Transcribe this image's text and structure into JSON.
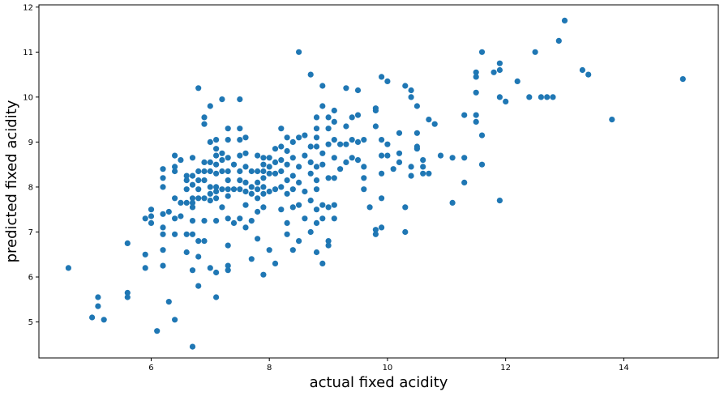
{
  "chart_data": {
    "type": "scatter",
    "title": "",
    "xlabel": "actual fixed acidity",
    "ylabel": "predicted fixed acidity",
    "xlim": [
      4.1,
      15.6
    ],
    "ylim": [
      4.2,
      12.05
    ],
    "xticks": [
      6,
      8,
      10,
      12,
      14
    ],
    "yticks": [
      5,
      6,
      7,
      8,
      9,
      10,
      11,
      12
    ],
    "grid": false,
    "colors": {
      "marker": "#1f77b4",
      "axes": "#000000",
      "background": "#ffffff"
    },
    "series": [
      {
        "points": [
          [
            4.6,
            6.2
          ],
          [
            5.0,
            5.1
          ],
          [
            5.1,
            5.55
          ],
          [
            5.1,
            5.35
          ],
          [
            5.2,
            5.05
          ],
          [
            5.6,
            6.75
          ],
          [
            5.6,
            5.65
          ],
          [
            5.6,
            5.55
          ],
          [
            5.9,
            7.3
          ],
          [
            5.9,
            6.5
          ],
          [
            5.9,
            6.2
          ],
          [
            6.0,
            7.5
          ],
          [
            6.0,
            7.35
          ],
          [
            6.0,
            7.2
          ],
          [
            6.1,
            4.8
          ],
          [
            6.2,
            8.4
          ],
          [
            6.2,
            8.2
          ],
          [
            6.2,
            8.0
          ],
          [
            6.2,
            7.4
          ],
          [
            6.2,
            7.1
          ],
          [
            6.2,
            6.95
          ],
          [
            6.2,
            6.6
          ],
          [
            6.2,
            6.25
          ],
          [
            6.3,
            7.45
          ],
          [
            6.3,
            5.45
          ],
          [
            6.4,
            8.7
          ],
          [
            6.4,
            8.45
          ],
          [
            6.4,
            8.35
          ],
          [
            6.4,
            7.75
          ],
          [
            6.4,
            7.3
          ],
          [
            6.4,
            6.95
          ],
          [
            6.4,
            5.05
          ],
          [
            6.5,
            8.6
          ],
          [
            6.5,
            7.65
          ],
          [
            6.5,
            7.35
          ],
          [
            6.6,
            8.25
          ],
          [
            6.6,
            8.15
          ],
          [
            6.6,
            7.95
          ],
          [
            6.6,
            7.65
          ],
          [
            6.6,
            6.95
          ],
          [
            6.6,
            6.55
          ],
          [
            6.7,
            8.65
          ],
          [
            6.7,
            8.25
          ],
          [
            6.7,
            8.05
          ],
          [
            6.7,
            7.75
          ],
          [
            6.7,
            7.65
          ],
          [
            6.7,
            7.55
          ],
          [
            6.7,
            7.25
          ],
          [
            6.7,
            6.95
          ],
          [
            6.7,
            6.15
          ],
          [
            6.7,
            4.45
          ],
          [
            6.8,
            10.2
          ],
          [
            6.8,
            8.35
          ],
          [
            6.8,
            8.15
          ],
          [
            6.8,
            7.95
          ],
          [
            6.8,
            7.75
          ],
          [
            6.8,
            6.8
          ],
          [
            6.8,
            6.45
          ],
          [
            6.8,
            5.8
          ],
          [
            6.9,
            9.55
          ],
          [
            6.9,
            9.4
          ],
          [
            6.9,
            8.55
          ],
          [
            6.9,
            8.35
          ],
          [
            6.9,
            8.15
          ],
          [
            6.9,
            7.75
          ],
          [
            6.9,
            7.25
          ],
          [
            6.9,
            6.8
          ],
          [
            7.0,
            9.8
          ],
          [
            7.0,
            9.0
          ],
          [
            7.0,
            8.55
          ],
          [
            7.0,
            8.35
          ],
          [
            7.0,
            8.0
          ],
          [
            7.0,
            7.85
          ],
          [
            7.0,
            7.7
          ],
          [
            7.0,
            6.2
          ],
          [
            7.1,
            9.05
          ],
          [
            7.1,
            8.85
          ],
          [
            7.1,
            8.7
          ],
          [
            7.1,
            8.5
          ],
          [
            7.1,
            8.3
          ],
          [
            7.1,
            8.0
          ],
          [
            7.1,
            7.9
          ],
          [
            7.1,
            7.75
          ],
          [
            7.1,
            7.25
          ],
          [
            7.1,
            6.1
          ],
          [
            7.1,
            5.55
          ],
          [
            7.2,
            9.95
          ],
          [
            7.2,
            8.75
          ],
          [
            7.2,
            8.6
          ],
          [
            7.2,
            8.35
          ],
          [
            7.2,
            7.95
          ],
          [
            7.2,
            7.55
          ],
          [
            7.3,
            9.3
          ],
          [
            7.3,
            9.05
          ],
          [
            7.3,
            8.65
          ],
          [
            7.3,
            8.35
          ],
          [
            7.3,
            8.15
          ],
          [
            7.3,
            7.95
          ],
          [
            7.3,
            7.8
          ],
          [
            7.3,
            7.3
          ],
          [
            7.3,
            6.7
          ],
          [
            7.3,
            6.25
          ],
          [
            7.3,
            6.15
          ],
          [
            7.4,
            8.5
          ],
          [
            7.4,
            7.95
          ],
          [
            7.4,
            7.2
          ],
          [
            7.5,
            9.95
          ],
          [
            7.5,
            9.3
          ],
          [
            7.5,
            9.05
          ],
          [
            7.5,
            8.7
          ],
          [
            7.5,
            8.35
          ],
          [
            7.5,
            8.15
          ],
          [
            7.5,
            7.95
          ],
          [
            7.5,
            7.3
          ],
          [
            7.6,
            9.1
          ],
          [
            7.6,
            8.75
          ],
          [
            7.6,
            8.45
          ],
          [
            7.6,
            8.1
          ],
          [
            7.6,
            7.9
          ],
          [
            7.6,
            7.6
          ],
          [
            7.6,
            7.1
          ],
          [
            7.7,
            8.35
          ],
          [
            7.7,
            8.0
          ],
          [
            7.7,
            7.85
          ],
          [
            7.7,
            7.25
          ],
          [
            7.7,
            6.4
          ],
          [
            7.8,
            8.7
          ],
          [
            7.8,
            8.35
          ],
          [
            7.8,
            8.1
          ],
          [
            7.8,
            7.95
          ],
          [
            7.8,
            7.75
          ],
          [
            7.8,
            7.45
          ],
          [
            7.8,
            6.85
          ],
          [
            7.9,
            8.65
          ],
          [
            7.9,
            8.5
          ],
          [
            7.9,
            8.35
          ],
          [
            7.9,
            8.2
          ],
          [
            7.9,
            8.0
          ],
          [
            7.9,
            7.85
          ],
          [
            7.9,
            7.55
          ],
          [
            7.9,
            6.05
          ],
          [
            8.0,
            8.65
          ],
          [
            8.0,
            8.45
          ],
          [
            8.0,
            8.3
          ],
          [
            8.0,
            7.9
          ],
          [
            8.0,
            6.6
          ],
          [
            8.1,
            8.85
          ],
          [
            8.1,
            8.55
          ],
          [
            8.1,
            8.3
          ],
          [
            8.1,
            7.95
          ],
          [
            8.1,
            6.3
          ],
          [
            8.2,
            9.3
          ],
          [
            8.2,
            8.9
          ],
          [
            8.2,
            8.6
          ],
          [
            8.2,
            8.35
          ],
          [
            8.2,
            8.0
          ],
          [
            8.2,
            7.5
          ],
          [
            8.3,
            9.1
          ],
          [
            8.3,
            8.8
          ],
          [
            8.3,
            8.5
          ],
          [
            8.3,
            8.15
          ],
          [
            8.3,
            7.85
          ],
          [
            8.3,
            7.2
          ],
          [
            8.3,
            6.95
          ],
          [
            8.4,
            9.0
          ],
          [
            8.4,
            8.65
          ],
          [
            8.4,
            8.25
          ],
          [
            8.4,
            7.95
          ],
          [
            8.4,
            7.55
          ],
          [
            8.4,
            6.6
          ],
          [
            8.5,
            11.0
          ],
          [
            8.5,
            9.1
          ],
          [
            8.5,
            8.45
          ],
          [
            8.5,
            8.1
          ],
          [
            8.5,
            7.6
          ],
          [
            8.5,
            6.8
          ],
          [
            8.6,
            9.15
          ],
          [
            8.6,
            8.7
          ],
          [
            8.6,
            7.9
          ],
          [
            8.6,
            7.3
          ],
          [
            8.7,
            10.5
          ],
          [
            8.7,
            8.9
          ],
          [
            8.7,
            8.55
          ],
          [
            8.7,
            8.3
          ],
          [
            8.7,
            7.7
          ],
          [
            8.7,
            7.0
          ],
          [
            8.8,
            9.55
          ],
          [
            8.8,
            9.3
          ],
          [
            8.8,
            9.1
          ],
          [
            8.8,
            8.9
          ],
          [
            8.8,
            8.45
          ],
          [
            8.8,
            8.15
          ],
          [
            8.8,
            7.95
          ],
          [
            8.8,
            7.5
          ],
          [
            8.8,
            7.2
          ],
          [
            8.8,
            6.55
          ],
          [
            8.9,
            10.25
          ],
          [
            8.9,
            9.8
          ],
          [
            8.9,
            8.75
          ],
          [
            8.9,
            8.5
          ],
          [
            8.9,
            7.6
          ],
          [
            8.9,
            7.3
          ],
          [
            8.9,
            6.3
          ],
          [
            9.0,
            9.55
          ],
          [
            9.0,
            9.3
          ],
          [
            9.0,
            8.95
          ],
          [
            9.0,
            8.2
          ],
          [
            9.0,
            7.55
          ],
          [
            9.0,
            6.8
          ],
          [
            9.0,
            6.7
          ],
          [
            9.1,
            9.7
          ],
          [
            9.1,
            9.45
          ],
          [
            9.1,
            9.05
          ],
          [
            9.1,
            8.65
          ],
          [
            9.1,
            8.2
          ],
          [
            9.1,
            7.6
          ],
          [
            9.1,
            7.3
          ],
          [
            9.2,
            8.95
          ],
          [
            9.2,
            8.4
          ],
          [
            9.3,
            10.2
          ],
          [
            9.3,
            9.35
          ],
          [
            9.3,
            8.95
          ],
          [
            9.3,
            8.55
          ],
          [
            9.4,
            9.55
          ],
          [
            9.4,
            9.05
          ],
          [
            9.4,
            8.65
          ],
          [
            9.5,
            10.15
          ],
          [
            9.5,
            9.6
          ],
          [
            9.5,
            9.0
          ],
          [
            9.5,
            8.6
          ],
          [
            9.6,
            9.05
          ],
          [
            9.6,
            8.45
          ],
          [
            9.6,
            8.2
          ],
          [
            9.6,
            7.95
          ],
          [
            9.7,
            7.55
          ],
          [
            9.8,
            9.7
          ],
          [
            9.8,
            9.35
          ],
          [
            9.8,
            9.75
          ],
          [
            9.8,
            7.05
          ],
          [
            9.8,
            6.95
          ],
          [
            9.9,
            10.45
          ],
          [
            9.9,
            9.05
          ],
          [
            9.9,
            8.7
          ],
          [
            9.9,
            8.3
          ],
          [
            9.9,
            7.75
          ],
          [
            9.9,
            7.1
          ],
          [
            10.0,
            10.35
          ],
          [
            10.0,
            8.95
          ],
          [
            10.0,
            8.7
          ],
          [
            10.1,
            8.4
          ],
          [
            10.2,
            9.2
          ],
          [
            10.2,
            8.75
          ],
          [
            10.2,
            8.55
          ],
          [
            10.3,
            10.25
          ],
          [
            10.3,
            7.55
          ],
          [
            10.3,
            7.0
          ],
          [
            10.4,
            10.15
          ],
          [
            10.4,
            10.0
          ],
          [
            10.4,
            8.45
          ],
          [
            10.4,
            8.25
          ],
          [
            10.5,
            9.8
          ],
          [
            10.5,
            9.2
          ],
          [
            10.5,
            8.9
          ],
          [
            10.5,
            8.85
          ],
          [
            10.6,
            8.6
          ],
          [
            10.6,
            8.45
          ],
          [
            10.6,
            8.3
          ],
          [
            10.7,
            9.5
          ],
          [
            10.7,
            8.3
          ],
          [
            10.8,
            9.4
          ],
          [
            10.9,
            8.7
          ],
          [
            11.1,
            8.65
          ],
          [
            11.1,
            7.65
          ],
          [
            11.3,
            9.6
          ],
          [
            11.3,
            8.65
          ],
          [
            11.3,
            8.1
          ],
          [
            11.5,
            10.55
          ],
          [
            11.5,
            10.45
          ],
          [
            11.5,
            10.1
          ],
          [
            11.5,
            9.6
          ],
          [
            11.5,
            9.45
          ],
          [
            11.6,
            11.0
          ],
          [
            11.6,
            9.15
          ],
          [
            11.6,
            8.5
          ],
          [
            11.8,
            10.55
          ],
          [
            11.9,
            10.75
          ],
          [
            11.9,
            10.6
          ],
          [
            11.9,
            10.0
          ],
          [
            11.9,
            7.7
          ],
          [
            12.0,
            9.9
          ],
          [
            12.2,
            10.35
          ],
          [
            12.4,
            10.0
          ],
          [
            12.5,
            11.0
          ],
          [
            12.6,
            10.0
          ],
          [
            12.7,
            10.0
          ],
          [
            12.8,
            10.0
          ],
          [
            12.9,
            11.25
          ],
          [
            13.0,
            11.7
          ],
          [
            13.3,
            10.6
          ],
          [
            13.4,
            10.5
          ],
          [
            13.8,
            9.5
          ],
          [
            15.0,
            10.4
          ]
        ]
      }
    ]
  }
}
